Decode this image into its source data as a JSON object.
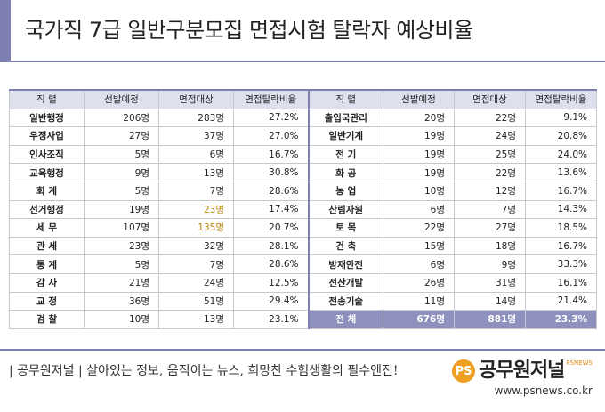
{
  "title": "국가직 7급 일반구분모집 면접시험 탈락자 예상비율",
  "headers": [
    "직 렬",
    "선발예정",
    "면접대상",
    "면접탈락비율"
  ],
  "left_rows": [
    {
      "name": "일반행정",
      "sel": "206명",
      "int": "283명",
      "rate": "27.2%"
    },
    {
      "name": "우정사업",
      "sel": "27명",
      "int": "37명",
      "rate": "27.0%"
    },
    {
      "name": "인사조직",
      "sel": "5명",
      "int": "6명",
      "rate": "16.7%"
    },
    {
      "name": "교육행정",
      "sel": "9명",
      "int": "13명",
      "rate": "30.8%"
    },
    {
      "name": "회 계",
      "sel": "5명",
      "int": "7명",
      "rate": "28.6%"
    },
    {
      "name": "선거행정",
      "sel": "19명",
      "int": "23명",
      "rate": "17.4%"
    },
    {
      "name": "세 무",
      "sel": "107명",
      "int": "135명",
      "rate": "20.7%"
    },
    {
      "name": "관 세",
      "sel": "23명",
      "int": "32명",
      "rate": "28.1%"
    },
    {
      "name": "통 계",
      "sel": "5명",
      "int": "7명",
      "rate": "28.6%"
    },
    {
      "name": "감 사",
      "sel": "21명",
      "int": "24명",
      "rate": "12.5%"
    },
    {
      "name": "교 정",
      "sel": "36명",
      "int": "51명",
      "rate": "29.4%"
    },
    {
      "name": "검 찰",
      "sel": "10명",
      "int": "13명",
      "rate": "23.1%"
    }
  ],
  "right_rows": [
    {
      "name": "출입국관리",
      "sel": "20명",
      "int": "22명",
      "rate": "9.1%"
    },
    {
      "name": "일반기계",
      "sel": "19명",
      "int": "24명",
      "rate": "20.8%"
    },
    {
      "name": "전 기",
      "sel": "19명",
      "int": "25명",
      "rate": "24.0%"
    },
    {
      "name": "화 공",
      "sel": "19명",
      "int": "22명",
      "rate": "13.6%"
    },
    {
      "name": "농 업",
      "sel": "10명",
      "int": "12명",
      "rate": "16.7%"
    },
    {
      "name": "산림자원",
      "sel": "6명",
      "int": "7명",
      "rate": "14.3%"
    },
    {
      "name": "토 목",
      "sel": "22명",
      "int": "27명",
      "rate": "18.5%"
    },
    {
      "name": "건 축",
      "sel": "15명",
      "int": "18명",
      "rate": "16.7%"
    },
    {
      "name": "방재안전",
      "sel": "6명",
      "int": "9명",
      "rate": "33.3%"
    },
    {
      "name": "전산개발",
      "sel": "26명",
      "int": "31명",
      "rate": "16.1%"
    },
    {
      "name": "전송기술",
      "sel": "11명",
      "int": "14명",
      "rate": "21.4%"
    },
    {
      "name": "전 체",
      "sel": "676명",
      "int": "881명",
      "rate": "23.3%"
    }
  ],
  "footer": {
    "text": "| 공무원저널 | 살아있는 정보, 움직이는 뉴스, 희망찬 수험생활의 필수엔진!",
    "logo_mark": "PS",
    "logo_name": "공무원저널",
    "logo_sub": "PSNEWS",
    "url": "www.psnews.co.kr"
  },
  "colors": {
    "accent": "#7d7fb0",
    "header_bg": "#dfe0ee",
    "total_bg": "#8e90bd",
    "highlight": "#b8860b",
    "logo_orange": "#f0a020"
  }
}
